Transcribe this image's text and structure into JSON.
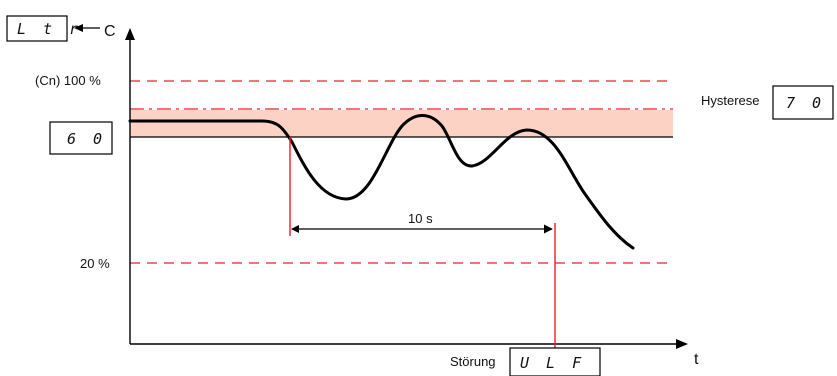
{
  "axis": {
    "y_label": "C",
    "x_label": "t"
  },
  "displays": {
    "top_left": "L t r",
    "setpoint": "6 0",
    "hysteresis": "7 0",
    "fault": "U L F"
  },
  "labels": {
    "cn_100": "(Cn) 100 %",
    "pct_20": "20 %",
    "hysterese": "Hysterese",
    "duration": "10 s",
    "stoerung": "Störung"
  },
  "colors": {
    "limit_line": "#e8202a",
    "hysteresis_band": "#fbd2c4",
    "curve": "#000000",
    "axis": "#000000"
  }
}
